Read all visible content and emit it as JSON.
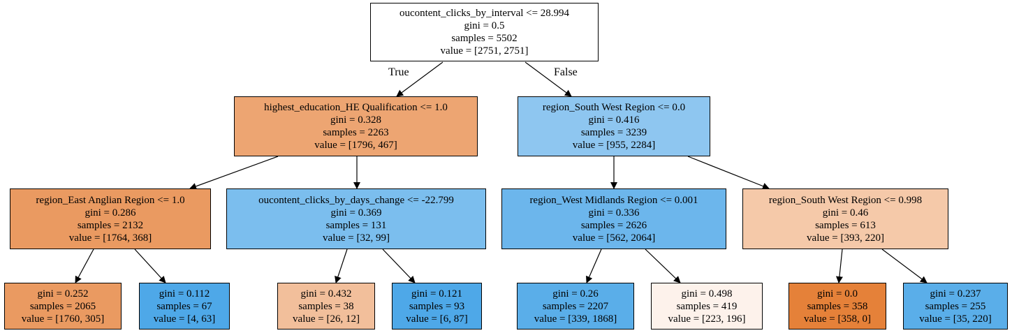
{
  "colors": {
    "white": "#ffffff",
    "orange_dark": "#e58139",
    "orange_strong": "#ea9a61",
    "orange_medium": "#eda572",
    "orange_light": "#f2bf9b",
    "orange_pale": "#f5c9a9",
    "orange_faint": "#fdf2eb",
    "blue_pale": "#8ec6f0",
    "blue_light": "#7bbeee",
    "blue_medium": "#6cb6ec",
    "blue_strong": "#5aaee9",
    "blue_dark": "#4ea8e8"
  },
  "edge_labels": {
    "true_label": "True",
    "false_label": "False"
  },
  "nodes": {
    "root": {
      "condition": "oucontent_clicks_by_interval <= 28.994",
      "gini": "gini = 0.5",
      "samples": "samples = 5502",
      "value": "value = [2751, 2751]",
      "color": "#ffffff"
    },
    "n1": {
      "condition": "highest_education_HE Qualification <= 1.0",
      "gini": "gini = 0.328",
      "samples": "samples = 2263",
      "value": "value = [1796, 467]",
      "color": "#eda572"
    },
    "n2": {
      "condition": "region_South West Region <= 0.0",
      "gini": "gini = 0.416",
      "samples": "samples = 3239",
      "value": "value = [955, 2284]",
      "color": "#8ec6f0"
    },
    "n3": {
      "condition": "region_East Anglian Region <= 1.0",
      "gini": "gini = 0.286",
      "samples": "samples = 2132",
      "value": "value = [1764, 368]",
      "color": "#ea9a61"
    },
    "n4": {
      "condition": "oucontent_clicks_by_days_change <= -22.799",
      "gini": "gini = 0.369",
      "samples": "samples = 131",
      "value": "value = [32, 99]",
      "color": "#7bbeee"
    },
    "n5": {
      "condition": "region_West Midlands Region <= 0.001",
      "gini": "gini = 0.336",
      "samples": "samples = 2626",
      "value": "value = [562, 2064]",
      "color": "#6cb6ec"
    },
    "n6": {
      "condition": "region_South West Region <= 0.998",
      "gini": "gini = 0.46",
      "samples": "samples = 613",
      "value": "value = [393, 220]",
      "color": "#f5c9a9"
    },
    "l1": {
      "gini": "gini = 0.252",
      "samples": "samples = 2065",
      "value": "value = [1760, 305]",
      "color": "#ea9a61"
    },
    "l2": {
      "gini": "gini = 0.112",
      "samples": "samples = 67",
      "value": "value = [4, 63]",
      "color": "#4ea8e8"
    },
    "l3": {
      "gini": "gini = 0.432",
      "samples": "samples = 38",
      "value": "value = [26, 12]",
      "color": "#f2bf9b"
    },
    "l4": {
      "gini": "gini = 0.121",
      "samples": "samples = 93",
      "value": "value = [6, 87]",
      "color": "#4ea8e8"
    },
    "l5": {
      "gini": "gini = 0.26",
      "samples": "samples = 2207",
      "value": "value = [339, 1868]",
      "color": "#5aaee9"
    },
    "l6": {
      "gini": "gini = 0.498",
      "samples": "samples = 419",
      "value": "value = [223, 196]",
      "color": "#fdf2eb"
    },
    "l7": {
      "gini": "gini = 0.0",
      "samples": "samples = 358",
      "value": "value = [358, 0]",
      "color": "#e58139"
    },
    "l8": {
      "gini": "gini = 0.237",
      "samples": "samples = 255",
      "value": "value = [35, 220]",
      "color": "#5aaee9"
    }
  }
}
